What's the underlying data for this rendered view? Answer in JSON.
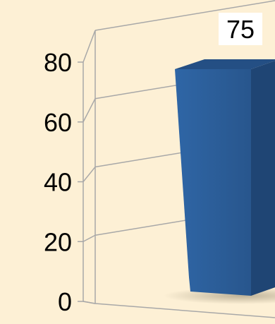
{
  "chart_data": {
    "type": "bar",
    "style": "3d-column",
    "categories": [
      ""
    ],
    "values": [
      75
    ],
    "ylim": [
      0,
      80
    ],
    "yticks": [
      0,
      20,
      40,
      60,
      80
    ],
    "data_labels": [
      "75"
    ],
    "grid": true,
    "legend": "none",
    "title": "",
    "xlabel": "",
    "ylabel": ""
  },
  "colors": {
    "background": "#fdf0d5",
    "bar_front": "#2a5b95",
    "bar_side": "#1f4574",
    "bar_top": "#244f84",
    "gridline": "#a8a8a8"
  }
}
